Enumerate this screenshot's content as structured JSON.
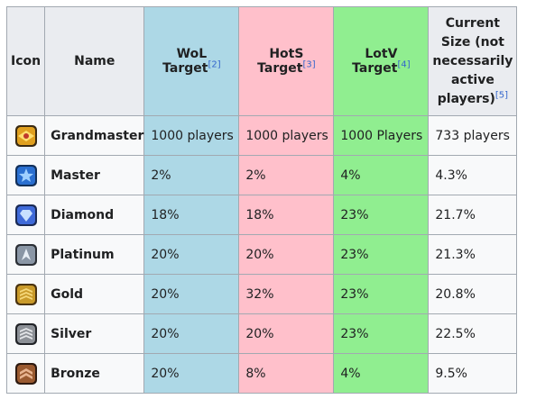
{
  "headers": {
    "icon": "Icon",
    "name": "Name",
    "wol": "WoL Target",
    "wol_ref": "[2]",
    "hots": "HotS Target",
    "hots_ref": "[3]",
    "lotv": "LotV Target",
    "lotv_ref": "[4]",
    "current": "Current Size (not necessarily active players)",
    "current_ref": "[5]"
  },
  "rows": [
    {
      "icon": "grandmaster-league-icon",
      "name": "Grandmaster",
      "wol": "1000 players",
      "hots": "1000 players",
      "lotv": "1000 Players",
      "current": "733 players"
    },
    {
      "icon": "master-league-icon",
      "name": "Master",
      "wol": "2%",
      "hots": "2%",
      "lotv": "4%",
      "current": "4.3%"
    },
    {
      "icon": "diamond-league-icon",
      "name": "Diamond",
      "wol": "18%",
      "hots": "18%",
      "lotv": "23%",
      "current": "21.7%"
    },
    {
      "icon": "platinum-league-icon",
      "name": "Platinum",
      "wol": "20%",
      "hots": "20%",
      "lotv": "23%",
      "current": "21.3%"
    },
    {
      "icon": "gold-league-icon",
      "name": "Gold",
      "wol": "20%",
      "hots": "32%",
      "lotv": "23%",
      "current": "20.8%"
    },
    {
      "icon": "silver-league-icon",
      "name": "Silver",
      "wol": "20%",
      "hots": "20%",
      "lotv": "23%",
      "current": "22.5%"
    },
    {
      "icon": "bronze-league-icon",
      "name": "Bronze",
      "wol": "20%",
      "hots": "8%",
      "lotv": "4%",
      "current": "9.5%"
    }
  ],
  "colors": {
    "wol": "#add8e6",
    "hots": "#ffc0cb",
    "lotv": "#90ee90",
    "header": "#eaecf0",
    "border": "#a2a9b1",
    "link": "#3366cc"
  }
}
